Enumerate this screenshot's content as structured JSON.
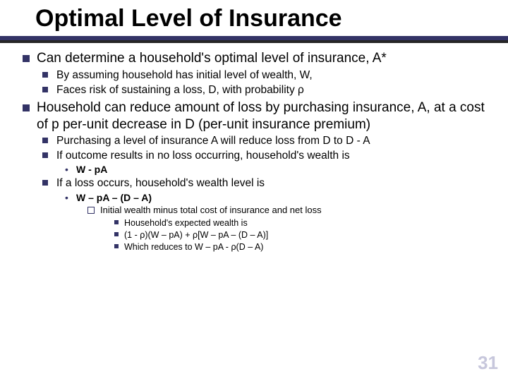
{
  "slide": {
    "title": "Optimal Level of Insurance",
    "page_number": "31",
    "colors": {
      "bullet": "#333366",
      "bar": "#333366",
      "bar_shadow": "#000000",
      "text": "#000000",
      "page_number": "#9a9ac0",
      "background": "#ffffff"
    },
    "typography": {
      "title_fontsize": 34,
      "lvl1_fontsize": 19,
      "lvl2_fontsize": 15.5,
      "lvl3_fontsize": 14,
      "lvl4_fontsize": 13,
      "lvl5_fontsize": 12.5,
      "font_family": "Arial"
    },
    "bullets": [
      {
        "text": "Can determine a household's optimal level of insurance, A*",
        "children": [
          {
            "text": "By assuming household has initial level of wealth, W,"
          },
          {
            "text": "Faces risk of sustaining a loss, D, with probability ρ"
          }
        ]
      },
      {
        "text": "Household can reduce amount of loss by purchasing insurance, A, at a cost of p per-unit decrease in D (per-unit insurance premium)",
        "children": [
          {
            "text": "Purchasing a level of insurance A will reduce loss from D to D - A"
          },
          {
            "text": "If outcome results in no loss occurring, household's wealth is",
            "children": [
              {
                "text": "W - pA"
              }
            ]
          },
          {
            "text": "If a loss occurs, household's wealth level is",
            "children": [
              {
                "text": "W – pA – (D – A)",
                "children": [
                  {
                    "text": "Initial wealth minus total cost of insurance and net loss",
                    "children": [
                      {
                        "text": "Household's expected wealth is"
                      },
                      {
                        "text": "(1 - ρ)(W – pA) + ρ[W – pA – (D – A)]"
                      },
                      {
                        "text": "Which reduces to W – pA - ρ(D – A)"
                      }
                    ]
                  }
                ]
              }
            ]
          }
        ]
      }
    ]
  }
}
